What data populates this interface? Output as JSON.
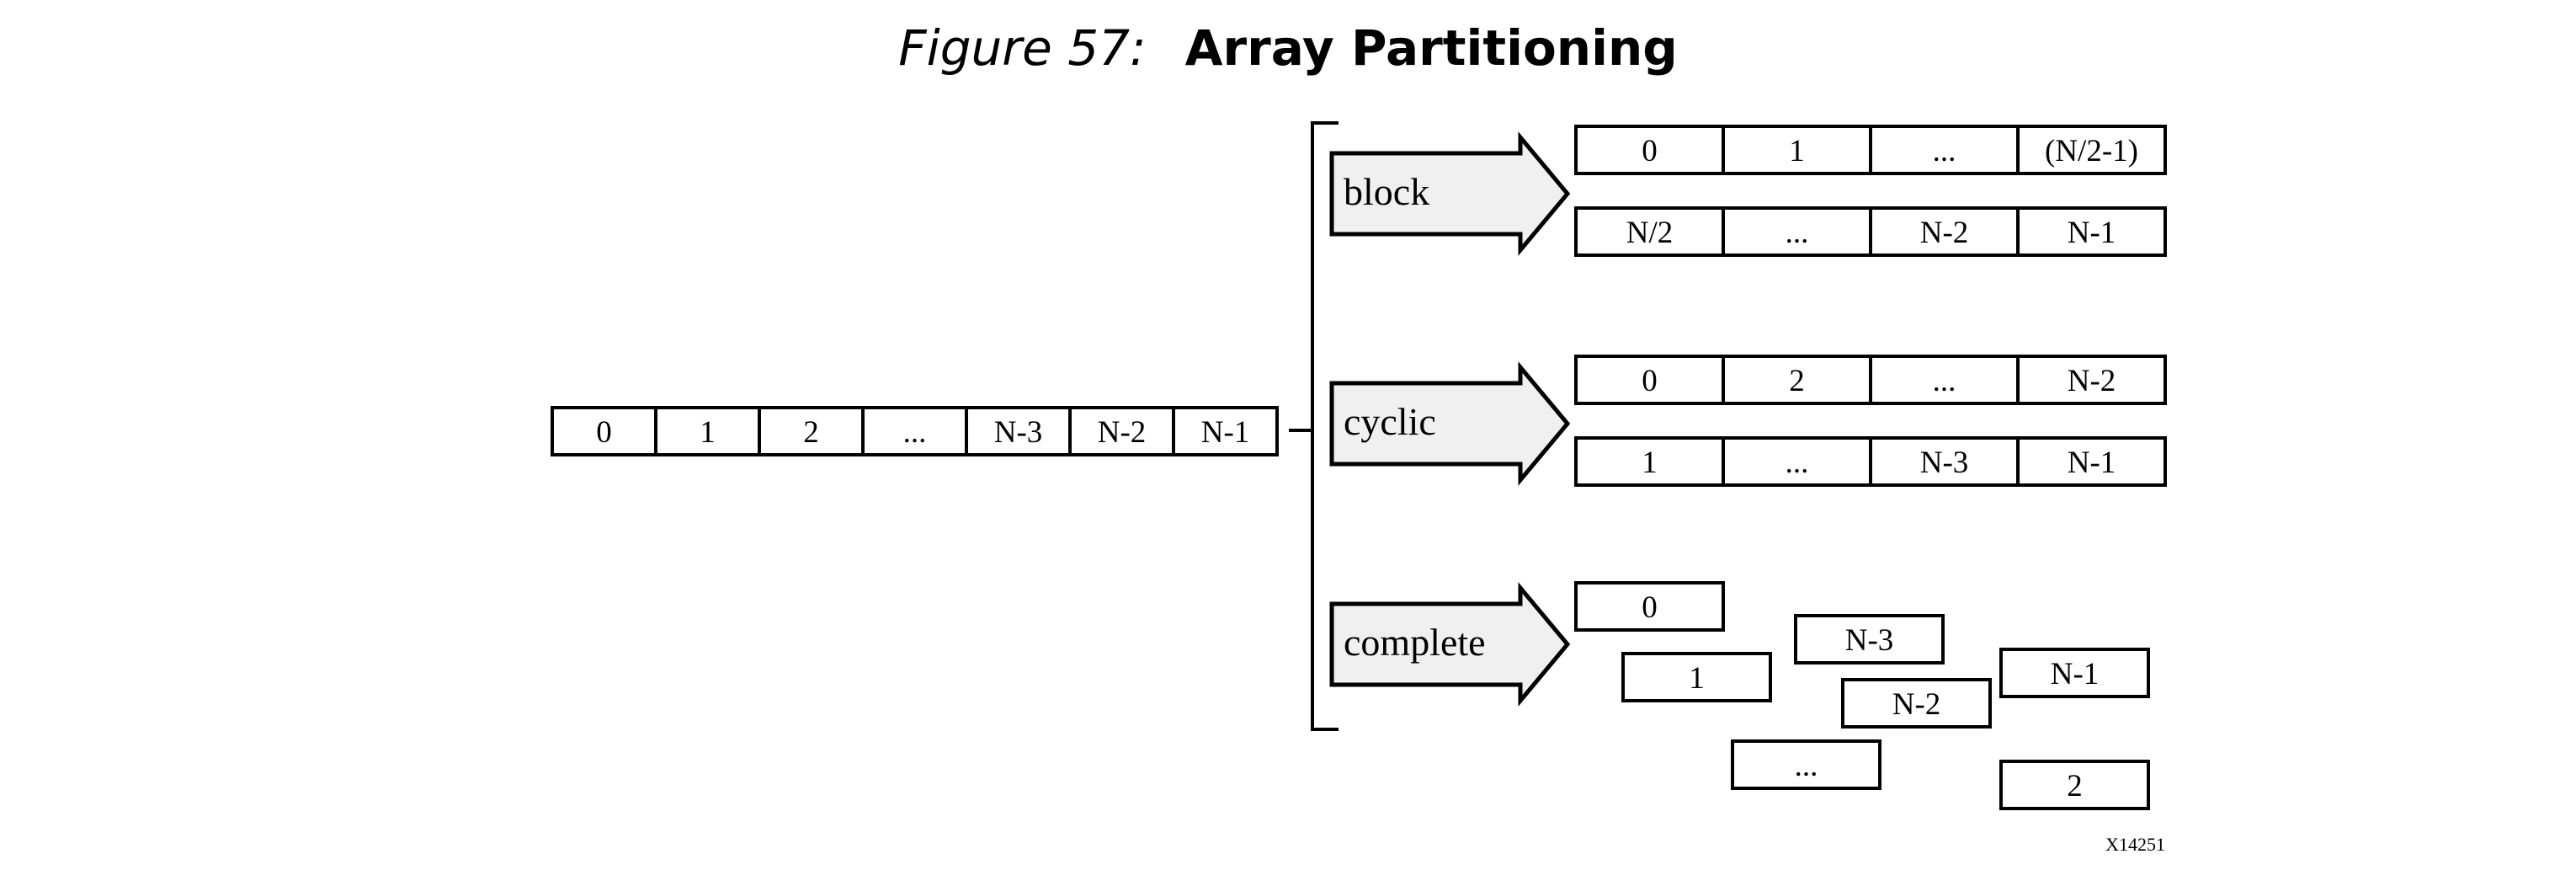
{
  "figure": {
    "number": "Figure 57:",
    "title": "Array Partitioning"
  },
  "source_array": [
    "0",
    "1",
    "2",
    "...",
    "N-3",
    "N-2",
    "N-1"
  ],
  "partitions": [
    {
      "label": "block",
      "rows": [
        [
          "0",
          "1",
          "...",
          "(N/2-1)"
        ],
        [
          "N/2",
          "...",
          "N-2",
          "N-1"
        ]
      ]
    },
    {
      "label": "cyclic",
      "rows": [
        [
          "0",
          "2",
          "...",
          "N-2"
        ],
        [
          "1",
          "...",
          "N-3",
          "N-1"
        ]
      ]
    },
    {
      "label": "complete",
      "cells": [
        "0",
        "N-3",
        "1",
        "N-1",
        "N-2",
        "...",
        "2"
      ]
    }
  ],
  "figure_id": "X14251"
}
